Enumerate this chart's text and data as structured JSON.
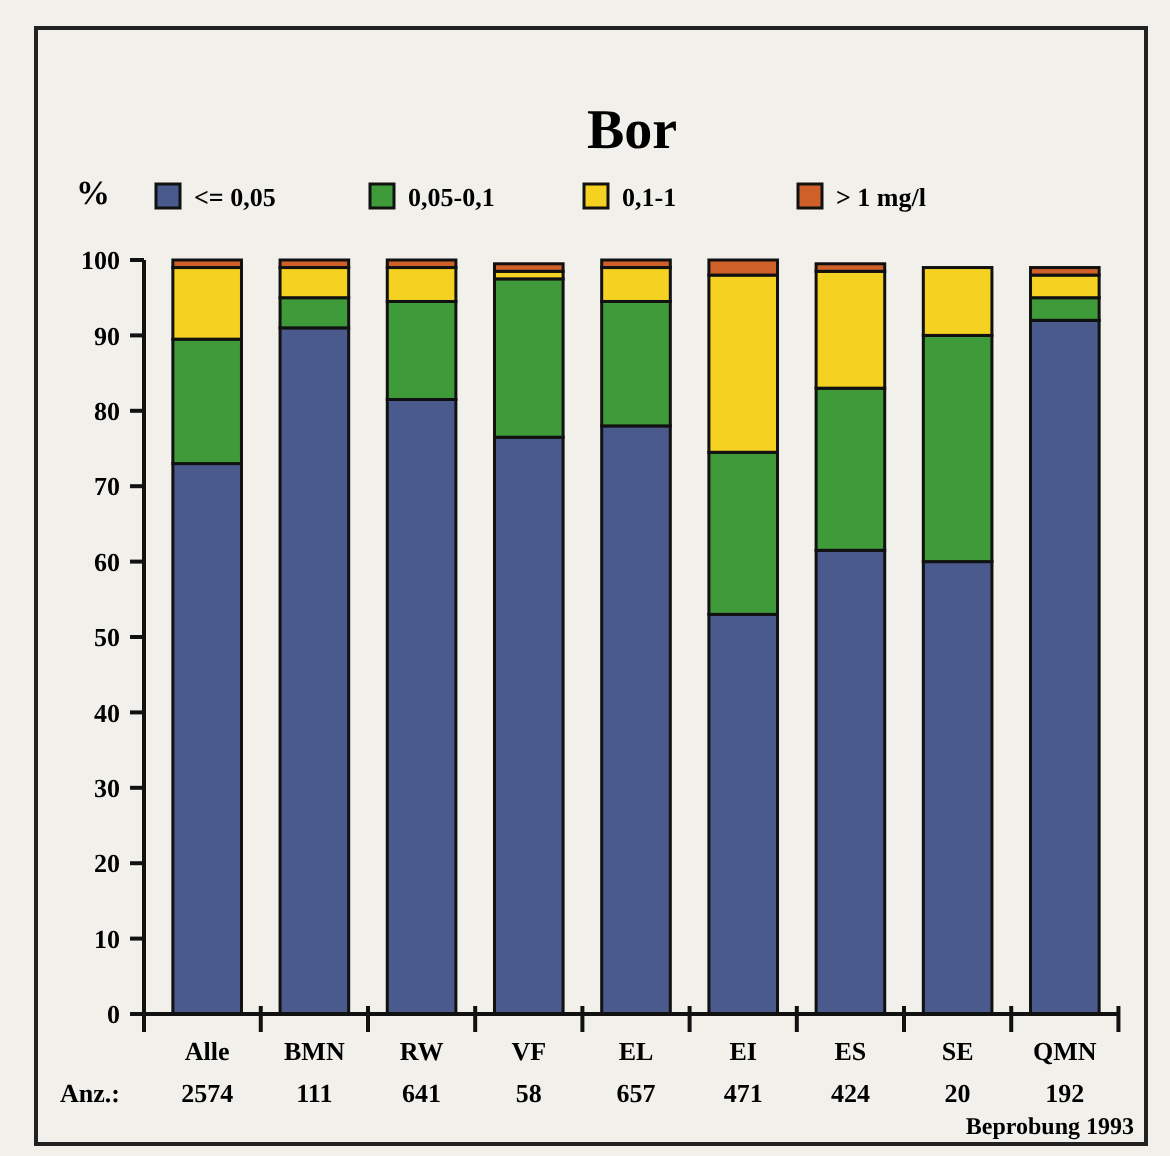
{
  "chart_data": {
    "type": "bar",
    "title": "Bor",
    "ylabel": "%",
    "stacked": true,
    "legend": "top",
    "grid": false,
    "categories": [
      "Alle",
      "BMN",
      "RW",
      "VF",
      "EL",
      "EI",
      "ES",
      "SE",
      "QMN"
    ],
    "series": [
      {
        "name": "<= 0,05",
        "color": "#4a5a8c",
        "values": [
          73,
          91,
          81.5,
          76.5,
          78,
          53,
          61.5,
          60,
          92
        ]
      },
      {
        "name": "0,05-0,1",
        "color": "#3f9a3a",
        "values": [
          16.5,
          4,
          13,
          21,
          16.5,
          21.5,
          21.5,
          30,
          3
        ]
      },
      {
        "name": "0,1-1",
        "color": "#f5d222",
        "values": [
          9.5,
          4,
          4.5,
          1,
          4.5,
          23.5,
          15.5,
          9,
          3
        ]
      },
      {
        "name": "> 1 mg/l",
        "color": "#d0602a",
        "values": [
          1,
          1,
          1,
          1,
          1,
          2,
          1,
          0,
          1
        ]
      }
    ],
    "ylim": [
      0,
      100
    ],
    "yticks": [
      0,
      10,
      20,
      30,
      40,
      50,
      60,
      70,
      80,
      90,
      100
    ],
    "annotations": [
      "Anz.:",
      "2574",
      "111",
      "641",
      "58",
      "657",
      "471",
      "424",
      "20",
      "192",
      "Beprobung 1993"
    ]
  }
}
